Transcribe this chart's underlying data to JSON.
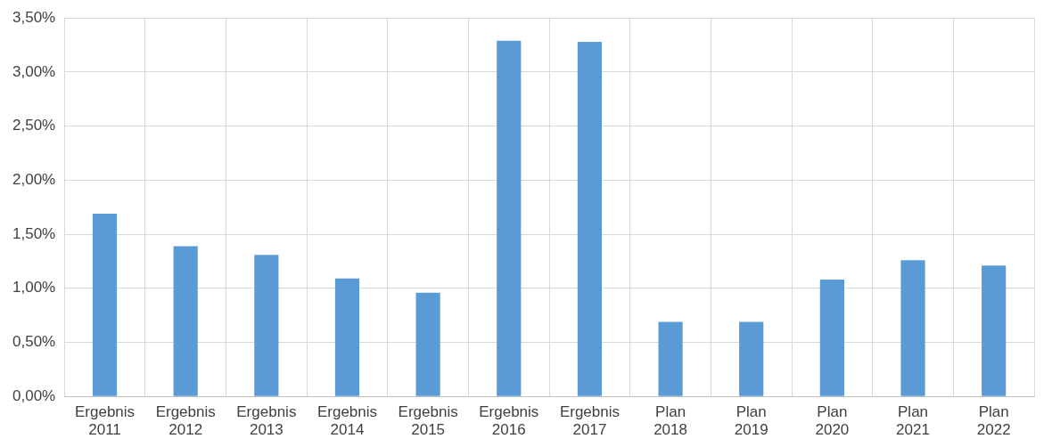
{
  "chart_data": {
    "type": "bar",
    "categories": [
      "Ergebnis 2011",
      "Ergebnis 2012",
      "Ergebnis 2013",
      "Ergebnis 2014",
      "Ergebnis 2015",
      "Ergebnis 2016",
      "Ergebnis 2017",
      "Plan 2018",
      "Plan 2019",
      "Plan 2020",
      "Plan 2021",
      "Plan 2022"
    ],
    "values": [
      1.69,
      1.39,
      1.31,
      1.09,
      0.96,
      3.29,
      3.28,
      0.69,
      0.69,
      1.08,
      1.26,
      1.21
    ],
    "color": "#5b9bd5",
    "ylim": [
      0,
      3.5
    ],
    "yticks": [
      {
        "value": 0,
        "label": "0,00%"
      },
      {
        "value": 0.5,
        "label": "0,50%"
      },
      {
        "value": 1,
        "label": "1,00%"
      },
      {
        "value": 1.5,
        "label": "1,50%"
      },
      {
        "value": 2,
        "label": "2,00%"
      },
      {
        "value": 2.5,
        "label": "2,50%"
      },
      {
        "value": 3,
        "label": "3,00%"
      },
      {
        "value": 3.5,
        "label": "3,50%"
      }
    ],
    "grid": true
  }
}
